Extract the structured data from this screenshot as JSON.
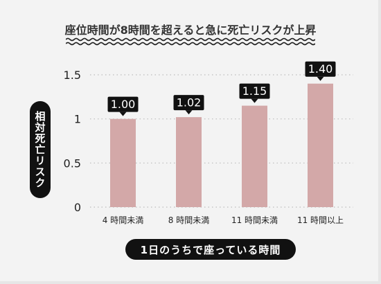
{
  "title": "座位時間が8時間を超えると急に死亡リスクが上昇",
  "colors": {
    "bar": "#d3a8a8",
    "label_bg": "#111111",
    "grid": "#bbbbbb"
  },
  "chart_data": {
    "type": "bar",
    "title": "座位時間が8時間を超えると急に死亡リスクが上昇",
    "xlabel": "1日のうちで座っている時間",
    "ylabel": "相対死亡リスク",
    "categories": [
      "4 時間未満",
      "8 時間未満",
      "11 時間未満",
      "11 時間以上"
    ],
    "values": [
      1.0,
      1.02,
      1.15,
      1.4
    ],
    "value_labels": [
      "1.00",
      "1.02",
      "1.15",
      "1.40"
    ],
    "ylim": [
      0,
      1.5
    ],
    "yticks": [
      0,
      0.5,
      1,
      1.5
    ],
    "ytick_labels": [
      "0",
      "0.5",
      "1",
      "1.5"
    ],
    "grid": true
  }
}
